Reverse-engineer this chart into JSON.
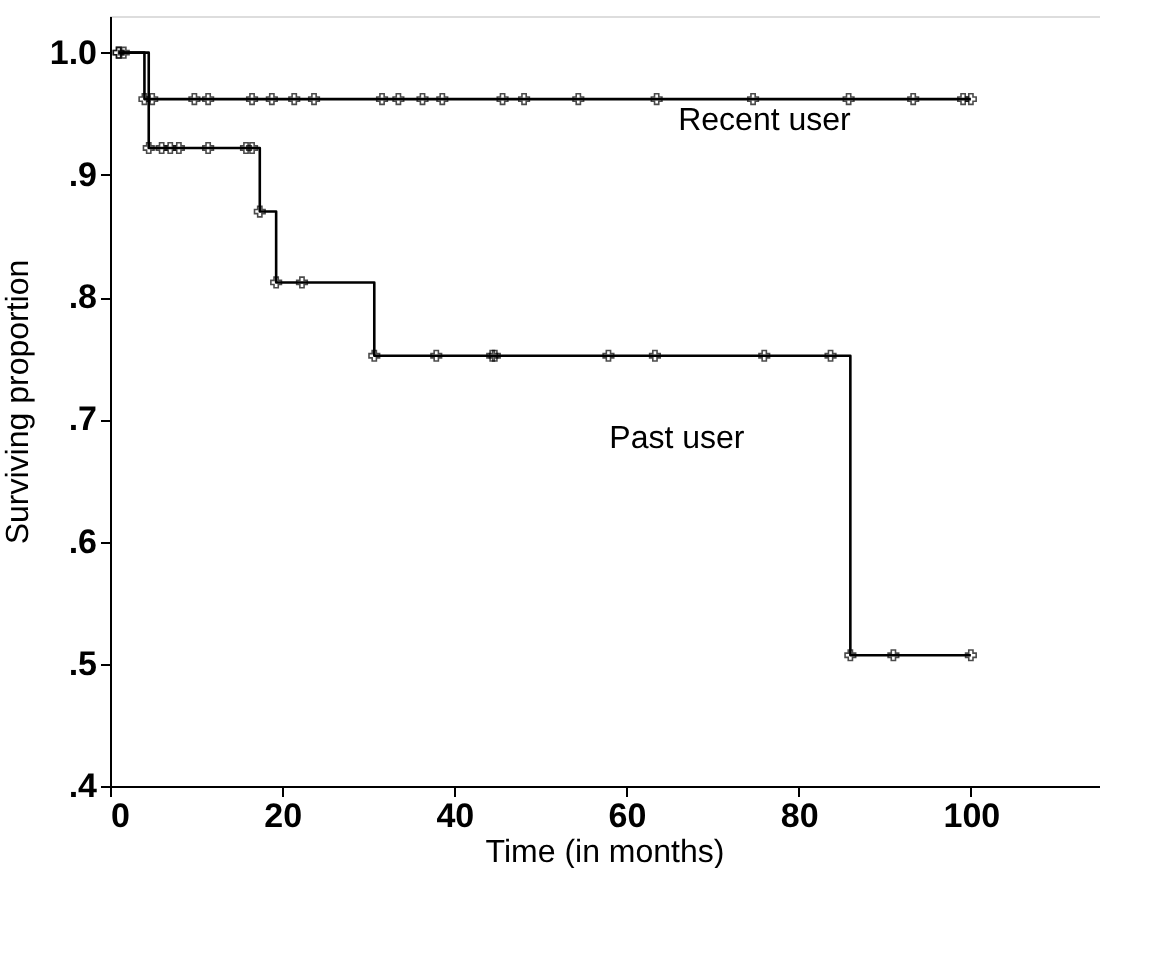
{
  "chart_data": {
    "type": "step",
    "xlabel": "Time (in months)",
    "ylabel": "Surviving proportion",
    "xlim": [
      0,
      115
    ],
    "ylim": [
      0.4,
      1.03
    ],
    "xticks": [
      0,
      20,
      40,
      60,
      80,
      100
    ],
    "yticks": [
      {
        "value": 0.4,
        "label": ".4"
      },
      {
        "value": 0.5,
        "label": ".5"
      },
      {
        "value": 0.6,
        "label": ".6"
      },
      {
        "value": 0.7,
        "label": ".7"
      },
      {
        "value": 0.8,
        "label": ".8"
      },
      {
        "value": 0.9,
        "label": ".9"
      },
      {
        "value": 1.0,
        "label": "1.0"
      }
    ],
    "grid": false,
    "marker": "cross",
    "series": [
      {
        "name": "Recent user",
        "color": "#000000",
        "x": [
          1,
          1.6,
          4,
          4.9,
          9.8,
          11.4,
          16.5,
          18.8,
          21.4,
          23.7,
          31.6,
          33.5,
          36.3,
          38.6,
          45.6,
          48.1,
          54.4,
          63.5,
          74.7,
          85.8,
          93.3,
          99.1,
          100
        ],
        "values": [
          1.0,
          1.0,
          0.962,
          0.962,
          0.962,
          0.962,
          0.962,
          0.962,
          0.962,
          0.962,
          0.962,
          0.962,
          0.962,
          0.962,
          0.962,
          0.962,
          0.962,
          0.962,
          0.962,
          0.962,
          0.962,
          0.962,
          0.962
        ]
      },
      {
        "name": "Past user",
        "color": "#000000",
        "x": [
          1,
          4.5,
          6,
          7,
          8,
          11.4,
          15.8,
          16.5,
          17.4,
          19.3,
          22.3,
          30.7,
          37.9,
          44.4,
          44.7,
          57.9,
          63.3,
          76,
          83.7,
          86,
          91,
          100
        ],
        "values": [
          1.0,
          0.922,
          0.922,
          0.922,
          0.922,
          0.922,
          0.922,
          0.922,
          0.87,
          0.812,
          0.812,
          0.752,
          0.752,
          0.752,
          0.752,
          0.752,
          0.752,
          0.752,
          0.752,
          0.507,
          0.507,
          0.507
        ]
      }
    ]
  }
}
